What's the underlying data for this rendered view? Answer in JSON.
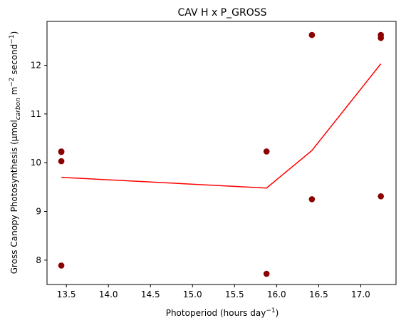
{
  "chart_data": {
    "type": "scatter",
    "title": "CAV H x P_GROSS",
    "xlabel": "Photoperiod (hours day",
    "xlabel_sup": "−1",
    "xlabel_tail": ")",
    "ylabel_parts": [
      {
        "text": "Gross Canopy Photosynthesis (µmol",
        "style": "normal"
      },
      {
        "text": "carbon",
        "style": "sub-italic"
      },
      {
        "text": " m",
        "style": "normal"
      },
      {
        "text": "−2",
        "style": "sup"
      },
      {
        "text": " second",
        "style": "normal"
      },
      {
        "text": "−1",
        "style": "sup"
      },
      {
        "text": ")",
        "style": "normal"
      }
    ],
    "xlim": [
      13.27,
      17.42
    ],
    "ylim": [
      7.5,
      12.9
    ],
    "x_ticks": [
      13.5,
      14.0,
      14.5,
      15.0,
      15.5,
      16.0,
      16.5,
      17.0
    ],
    "x_tick_labels": [
      "13.5",
      "14.0",
      "14.5",
      "15.0",
      "15.5",
      "16.0",
      "16.5",
      "17.0"
    ],
    "y_ticks": [
      8,
      9,
      10,
      11,
      12
    ],
    "y_tick_labels": [
      "8",
      "9",
      "10",
      "11",
      "12"
    ],
    "grid": false,
    "series": [
      {
        "kind": "scatter",
        "color": "#8b0000",
        "points": [
          {
            "x": 13.44,
            "y": 10.23
          },
          {
            "x": 13.44,
            "y": 10.22
          },
          {
            "x": 13.44,
            "y": 10.03
          },
          {
            "x": 13.44,
            "y": 7.89
          },
          {
            "x": 15.88,
            "y": 10.23
          },
          {
            "x": 15.88,
            "y": 7.72
          },
          {
            "x": 16.42,
            "y": 12.62
          },
          {
            "x": 16.42,
            "y": 9.25
          },
          {
            "x": 17.24,
            "y": 12.62
          },
          {
            "x": 17.24,
            "y": 12.56
          },
          {
            "x": 17.24,
            "y": 9.31
          }
        ]
      },
      {
        "kind": "line",
        "color": "#ff0000",
        "points": [
          {
            "x": 13.44,
            "y": 9.7
          },
          {
            "x": 15.88,
            "y": 9.48
          },
          {
            "x": 16.42,
            "y": 10.25
          },
          {
            "x": 17.24,
            "y": 12.03
          }
        ]
      }
    ]
  }
}
